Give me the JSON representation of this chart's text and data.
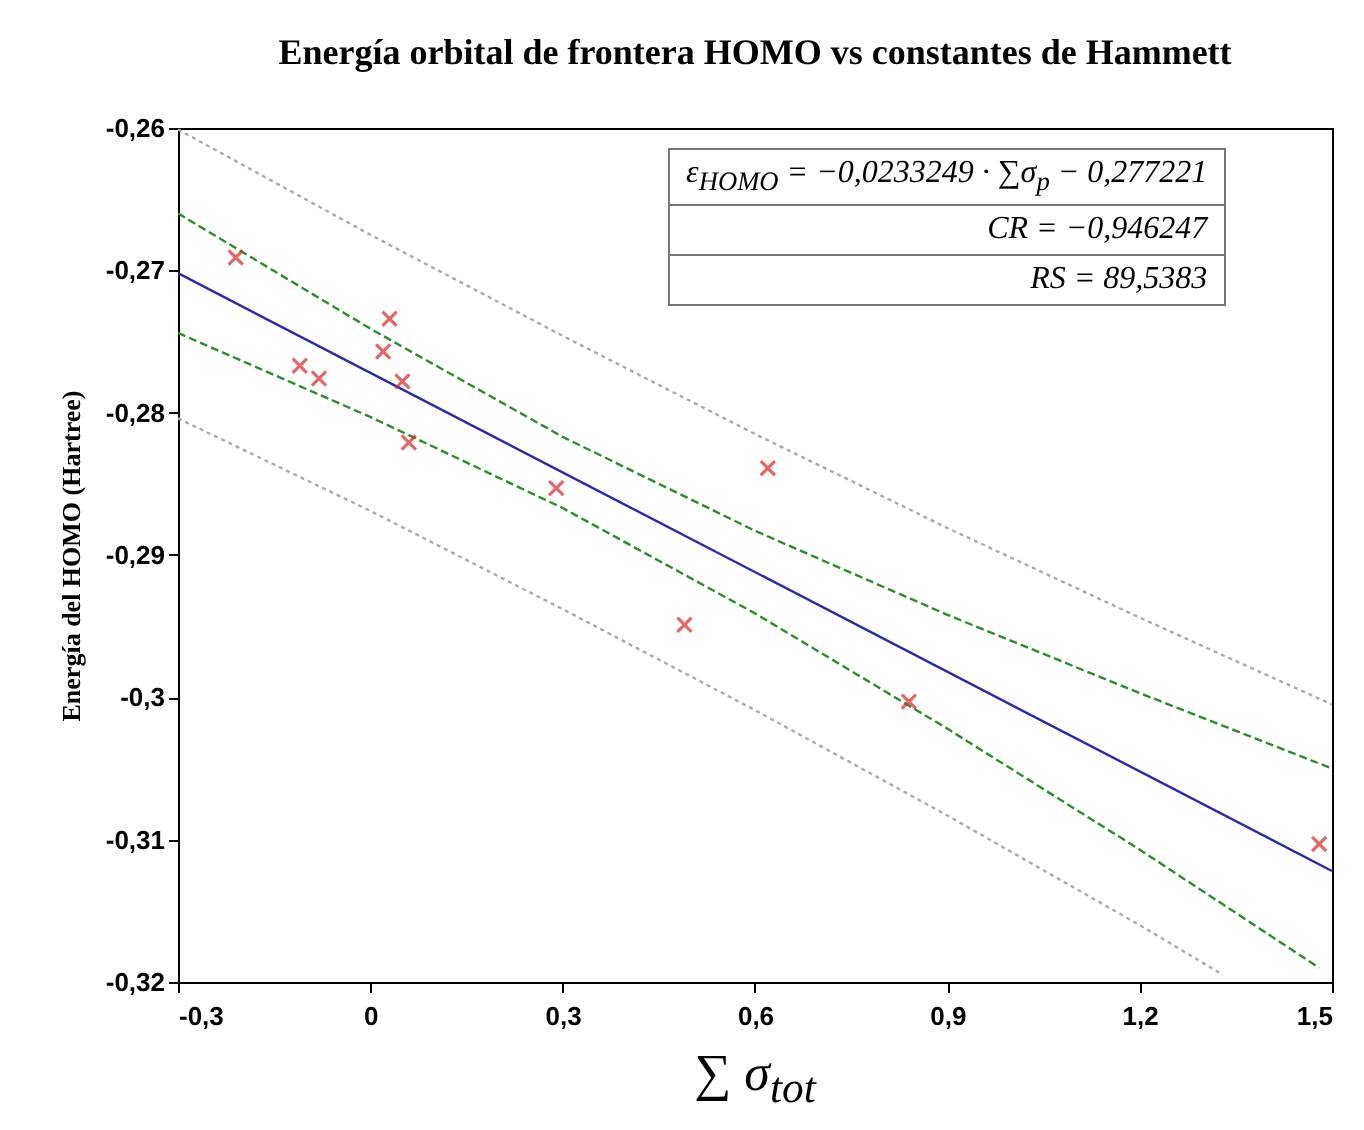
{
  "chart_data": {
    "type": "scatter",
    "title": "Energía orbital de frontera HOMO vs constantes de Hammett",
    "xlabel": "∑ σ$_{tot}$",
    "ylabel": "Energía del HOMO (Hartree)",
    "annotations": [
      "ε$_{HOMO}$ = −0,0233249 · ∑σ$_{p}$ − 0,277221",
      "CR = −0,946247",
      "RS = 89,5383"
    ],
    "xlim": [
      -0.3,
      1.5
    ],
    "ylim": [
      -0.32,
      -0.26
    ],
    "xticks": [
      {
        "value": -0.3,
        "label": "-0,3"
      },
      0,
      {
        "value": 0.3,
        "label": "0,3"
      },
      {
        "value": 0.6,
        "label": "0,6"
      },
      {
        "value": 0.9,
        "label": "0,9"
      },
      {
        "value": 1.2,
        "label": "1,2"
      },
      {
        "value": 1.5,
        "label": "1,5"
      }
    ],
    "yticks": [
      {
        "value": -0.32,
        "label": "-0,32"
      },
      {
        "value": -0.31,
        "label": "-0,31"
      },
      {
        "value": -0.3,
        "label": "-0,3"
      },
      {
        "value": -0.29,
        "label": "-0,29"
      },
      {
        "value": -0.28,
        "label": "-0,28"
      },
      {
        "value": -0.27,
        "label": "-0,27"
      },
      {
        "value": -0.26,
        "label": "-0,26"
      }
    ],
    "grid": false,
    "series": [
      {
        "type": "line",
        "color": "#aaaaaa",
        "line_style": "dotted",
        "x": [
          -0.3,
          0,
          0.3,
          0.6,
          0.9,
          1.2,
          1.5
        ],
        "values": [
          -0.2601,
          -0.2675,
          -0.2746,
          -0.2815,
          -0.2881,
          -0.2944,
          -0.3005
        ]
      },
      {
        "type": "line",
        "color": "#aaaaaa",
        "line_style": "dotted",
        "x": [
          -0.3,
          0,
          0.3,
          0.6,
          0.9,
          1.2,
          1.33
        ],
        "values": [
          -0.2804,
          -0.2869,
          -0.2938,
          -0.3009,
          -0.3083,
          -0.316,
          -0.3195
        ]
      },
      {
        "type": "line",
        "color": "#2e8b2e",
        "line_style": "dashed",
        "x": [
          -0.3,
          0,
          0.3,
          0.6,
          0.9,
          1.2,
          1.5
        ],
        "values": [
          -0.266,
          -0.2741,
          -0.2817,
          -0.2883,
          -0.2942,
          -0.2997,
          -0.305
        ]
      },
      {
        "type": "line",
        "color": "#2e8b2e",
        "line_style": "dashed",
        "x": [
          -0.3,
          0,
          0.3,
          0.6,
          0.9,
          1.2,
          1.48
        ],
        "values": [
          -0.2744,
          -0.2803,
          -0.2867,
          -0.2941,
          -0.3022,
          -0.3107,
          -0.319
        ]
      },
      {
        "type": "line",
        "color": "#2a2aa8",
        "line_style": "solid",
        "x": [
          -0.3,
          1.5
        ],
        "values": [
          -0.2702,
          -0.3122
        ]
      },
      {
        "color": "#d62728",
        "marker": "cross",
        "x": [
          -0.21,
          -0.11,
          -0.08,
          0.03,
          0.02,
          0.05,
          0.06,
          0.29,
          0.49,
          0.62,
          0.84,
          1.48
        ],
        "values": [
          -0.2691,
          -0.2767,
          -0.2776,
          -0.2734,
          -0.2757,
          -0.2778,
          -0.2821,
          -0.2853,
          -0.2949,
          -0.2839,
          -0.3003,
          -0.3103
        ]
      }
    ]
  }
}
